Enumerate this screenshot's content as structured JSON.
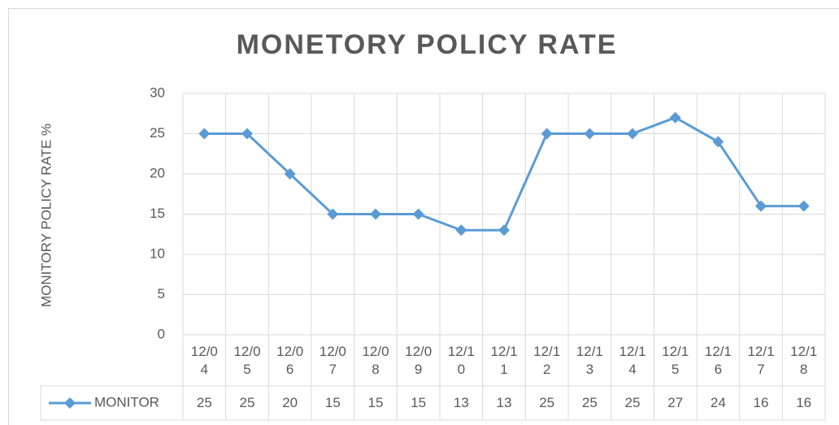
{
  "chart_data": {
    "type": "line",
    "title": "MONETORY POLICY RATE",
    "y_label": "MONITORY POLICY RATE %",
    "categories": [
      "12/04",
      "12/05",
      "12/06",
      "12/07",
      "12/08",
      "12/09",
      "12/10",
      "12/11",
      "12/12",
      "12/13",
      "12/14",
      "12/15",
      "12/16",
      "12/17",
      "12/18"
    ],
    "series": [
      {
        "name": "MONITOR",
        "color": "#5b9bd5",
        "values": [
          25,
          25,
          20,
          15,
          15,
          15,
          13,
          13,
          25,
          25,
          25,
          27,
          24,
          16,
          16
        ]
      }
    ],
    "ylim": [
      0,
      30
    ],
    "yticks": [
      0,
      5,
      10,
      15,
      20,
      25,
      30
    ],
    "grid": true,
    "data_table": true
  }
}
